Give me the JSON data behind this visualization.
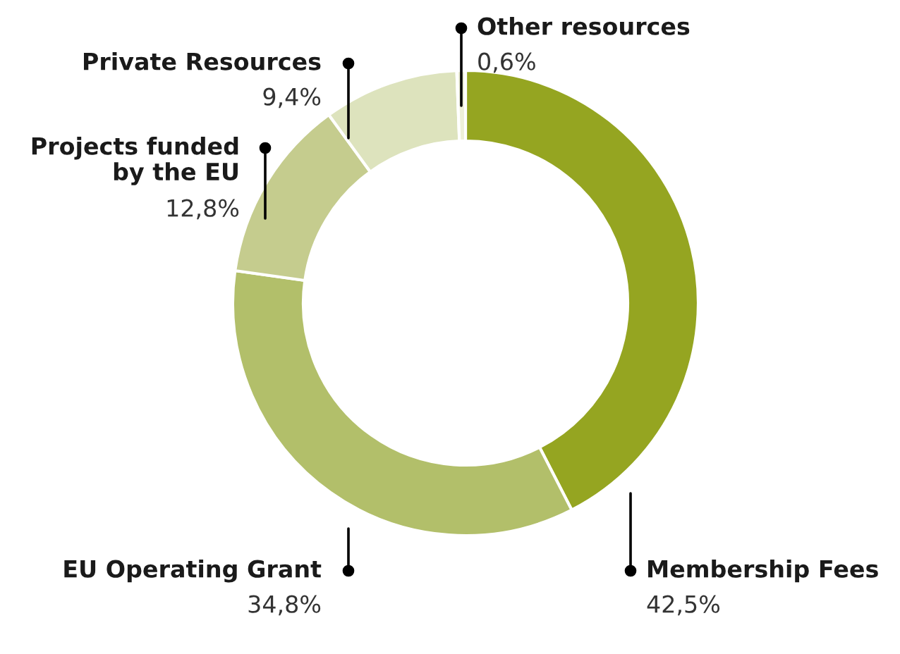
{
  "chart_data": {
    "type": "donut",
    "categories": [
      "Membership Fees",
      "EU Operating Grant",
      "Projects funded\nby the EU",
      "Private Resources",
      "Other resources"
    ],
    "values": [
      42.5,
      34.8,
      12.8,
      9.4,
      0.6
    ],
    "value_labels": [
      "42,5%",
      "34,8%",
      "12,8%",
      "9,4%",
      "0,6%"
    ],
    "colors": [
      "#95a521",
      "#b2bf6a",
      "#c5cc8e",
      "#dde3bd",
      "#eef0d8"
    ]
  }
}
